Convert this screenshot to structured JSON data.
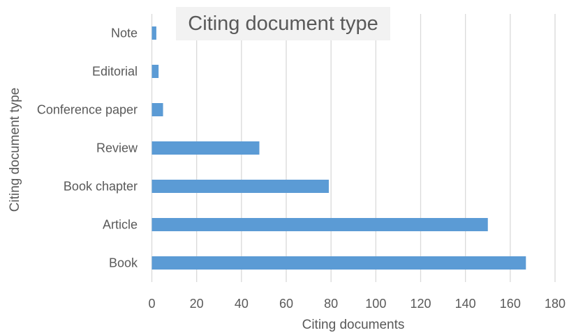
{
  "chart_data": {
    "type": "bar",
    "orientation": "horizontal",
    "title": "Citing document type",
    "xlabel": "Citing documents",
    "ylabel": "Citing document type",
    "categories": [
      "Book",
      "Article",
      "Book chapter",
      "Review",
      "Conference paper",
      "Editorial",
      "Note"
    ],
    "values": [
      167,
      150,
      79,
      48,
      5,
      3,
      2
    ],
    "xlim": [
      0,
      180
    ],
    "xticks": [
      0,
      20,
      40,
      60,
      80,
      100,
      120,
      140,
      160,
      180
    ],
    "grid": "vertical",
    "legend": "none",
    "colors": {
      "bar": "#5b9bd5",
      "grid": "#d9d9d9",
      "text": "#595959"
    }
  }
}
